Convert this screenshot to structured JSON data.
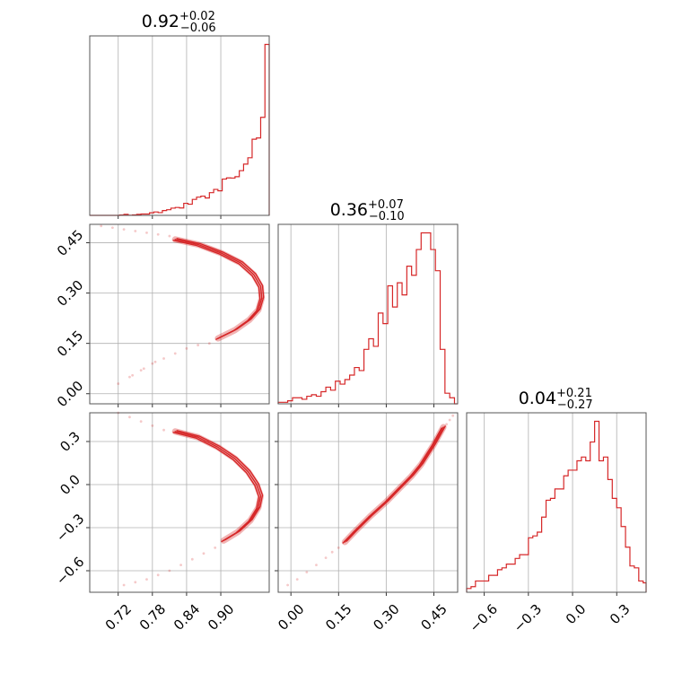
{
  "figure": {
    "type": "corner-plot",
    "color": "#d62728"
  },
  "chart_data": [
    {
      "id": "hist-0",
      "type": "bar",
      "histtype": "step",
      "title": {
        "median": "0.92",
        "plus": "+0.02",
        "minus": "−0.06"
      },
      "xlim": [
        0.67,
        0.985
      ],
      "bin_edges": [
        0.67,
        0.6775,
        0.685,
        0.6925,
        0.7,
        0.7075,
        0.715,
        0.7225,
        0.73,
        0.7375,
        0.745,
        0.7525,
        0.76,
        0.7675,
        0.775,
        0.7825,
        0.79,
        0.7975,
        0.805,
        0.8125,
        0.82,
        0.8275,
        0.835,
        0.8425,
        0.85,
        0.8575,
        0.865,
        0.8725,
        0.88,
        0.8875,
        0.895,
        0.9025,
        0.91,
        0.9175,
        0.925,
        0.9325,
        0.94,
        0.9475,
        0.955,
        0.9625,
        0.97,
        0.9775,
        0.985
      ],
      "values": [
        0,
        0,
        0,
        0,
        0,
        0,
        0,
        0.2,
        0.6,
        0.1,
        0.3,
        0.6,
        0.8,
        0.8,
        1.5,
        2.0,
        1.6,
        2.8,
        3.3,
        4.2,
        4.6,
        4.3,
        7.0,
        6.5,
        9.3,
        10.6,
        11.2,
        10.1,
        13.2,
        15.1,
        14.3,
        21.1,
        21.8,
        21.7,
        22.5,
        26.0,
        29.8,
        33.5,
        44.3,
        45.0,
        57.0,
        99.4
      ],
      "xticks": [
        0.72,
        0.78,
        0.84,
        0.9
      ],
      "xtick_labels": [
        "0.72",
        "0.78",
        "0.84",
        "0.90"
      ]
    },
    {
      "id": "hist-1",
      "type": "bar",
      "histtype": "step",
      "title": {
        "median": "0.36",
        "plus": "+0.07",
        "minus": "−0.10"
      },
      "xlim": [
        -0.04,
        0.525
      ],
      "bin_edges": [
        -0.04,
        -0.025,
        -0.01,
        0.005,
        0.02,
        0.035,
        0.05,
        0.065,
        0.08,
        0.095,
        0.11,
        0.125,
        0.14,
        0.155,
        0.17,
        0.185,
        0.2,
        0.215,
        0.23,
        0.245,
        0.26,
        0.275,
        0.29,
        0.305,
        0.32,
        0.335,
        0.35,
        0.365,
        0.38,
        0.395,
        0.41,
        0.425,
        0.44,
        0.455,
        0.47,
        0.485,
        0.5,
        0.515,
        0.525
      ],
      "values": [
        1,
        1,
        2,
        4,
        4,
        3,
        5,
        6,
        5,
        8,
        11,
        9,
        15,
        13,
        16,
        19,
        24,
        22,
        36,
        43,
        38,
        60,
        53,
        78,
        64,
        80,
        72,
        91,
        85,
        102,
        113,
        113,
        102,
        88,
        36,
        7,
        4,
        0
      ],
      "xticks": [
        0.0,
        0.15,
        0.3,
        0.45
      ],
      "xtick_labels": [
        "0.00",
        "0.15",
        "0.30",
        "0.45"
      ]
    },
    {
      "id": "hist-2",
      "type": "bar",
      "histtype": "step",
      "title": {
        "median": "0.04",
        "plus": "+0.21",
        "minus": "−0.27"
      },
      "xlim": [
        -0.72,
        0.5
      ],
      "bin_edges": [
        -0.72,
        -0.69,
        -0.66,
        -0.63,
        -0.6,
        -0.57,
        -0.54,
        -0.51,
        -0.48,
        -0.45,
        -0.42,
        -0.39,
        -0.36,
        -0.33,
        -0.3,
        -0.27,
        -0.24,
        -0.21,
        -0.18,
        -0.15,
        -0.12,
        -0.09,
        -0.06,
        -0.03,
        0.0,
        0.03,
        0.06,
        0.09,
        0.12,
        0.15,
        0.18,
        0.21,
        0.24,
        0.27,
        0.3,
        0.33,
        0.36,
        0.39,
        0.42,
        0.45,
        0.48,
        0.5
      ],
      "values": [
        2,
        3,
        6,
        6,
        6,
        9,
        9,
        12,
        13,
        15,
        15,
        18,
        20,
        20,
        29,
        30,
        32,
        40,
        49,
        50,
        55,
        55,
        62,
        65,
        65,
        70,
        72,
        70,
        80,
        91,
        70,
        72,
        60,
        50,
        45,
        35,
        24,
        14,
        13,
        6,
        5
      ],
      "xticks": [
        -0.6,
        -0.3,
        0.0,
        0.3
      ],
      "xtick_labels": [
        "−0.6",
        "−0.3",
        "0.0",
        "0.3"
      ]
    },
    {
      "id": "scatter-1-0",
      "type": "scatter",
      "xlim": [
        0.67,
        0.985
      ],
      "ylim": [
        -0.03,
        0.505
      ],
      "yticks": [
        0.0,
        0.15,
        0.3,
        0.45
      ],
      "ytick_labels": [
        "0.00",
        "0.15",
        "0.30",
        "0.45"
      ],
      "contour": {
        "x": [
          0.82,
          0.86,
          0.9,
          0.935,
          0.958,
          0.97,
          0.972,
          0.966,
          0.95,
          0.925,
          0.895
        ],
        "y": [
          0.46,
          0.445,
          0.42,
          0.39,
          0.355,
          0.32,
          0.285,
          0.25,
          0.22,
          0.19,
          0.165
        ]
      },
      "points_x": [
        0.69,
        0.71,
        0.73,
        0.75,
        0.77,
        0.79,
        0.81,
        0.72,
        0.74,
        0.76,
        0.78,
        0.8,
        0.82,
        0.84,
        0.86,
        0.88,
        0.745,
        0.765,
        0.785
      ],
      "points_y": [
        0.5,
        0.495,
        0.49,
        0.485,
        0.48,
        0.475,
        0.47,
        0.03,
        0.05,
        0.07,
        0.09,
        0.105,
        0.12,
        0.135,
        0.145,
        0.15,
        0.055,
        0.075,
        0.095
      ]
    },
    {
      "id": "scatter-2-0",
      "type": "scatter",
      "xlim": [
        0.67,
        0.985
      ],
      "ylim": [
        -0.75,
        0.5
      ],
      "yticks": [
        -0.6,
        -0.3,
        0.0,
        0.3
      ],
      "ytick_labels": [
        "−0.6",
        "−0.3",
        "0.0",
        "0.3"
      ],
      "contour": {
        "x": [
          0.82,
          0.86,
          0.895,
          0.925,
          0.948,
          0.963,
          0.97,
          0.966,
          0.952,
          0.93,
          0.905
        ],
        "y": [
          0.37,
          0.33,
          0.26,
          0.18,
          0.09,
          0.0,
          -0.08,
          -0.16,
          -0.25,
          -0.33,
          -0.39
        ]
      },
      "points_x": [
        0.72,
        0.74,
        0.76,
        0.78,
        0.8,
        0.73,
        0.75,
        0.77,
        0.79,
        0.81,
        0.83,
        0.85,
        0.87,
        0.89
      ],
      "points_y": [
        0.5,
        0.47,
        0.44,
        0.41,
        0.38,
        -0.7,
        -0.68,
        -0.66,
        -0.63,
        -0.6,
        -0.56,
        -0.52,
        -0.48,
        -0.44
      ]
    },
    {
      "id": "scatter-2-1",
      "type": "scatter",
      "xlim": [
        -0.04,
        0.525
      ],
      "ylim": [
        -0.75,
        0.5
      ],
      "contour": {
        "x": [
          0.17,
          0.2,
          0.25,
          0.3,
          0.34,
          0.38,
          0.41,
          0.43,
          0.45,
          0.465,
          0.48
        ],
        "y": [
          -0.4,
          -0.33,
          -0.22,
          -0.12,
          -0.03,
          0.06,
          0.14,
          0.21,
          0.28,
          0.34,
          0.4
        ]
      },
      "points_x": [
        -0.01,
        0.02,
        0.05,
        0.08,
        0.11,
        0.13,
        0.15,
        0.49,
        0.5,
        0.51
      ],
      "points_y": [
        -0.7,
        -0.66,
        -0.61,
        -0.56,
        -0.51,
        -0.47,
        -0.44,
        0.42,
        0.45,
        0.48
      ]
    }
  ]
}
